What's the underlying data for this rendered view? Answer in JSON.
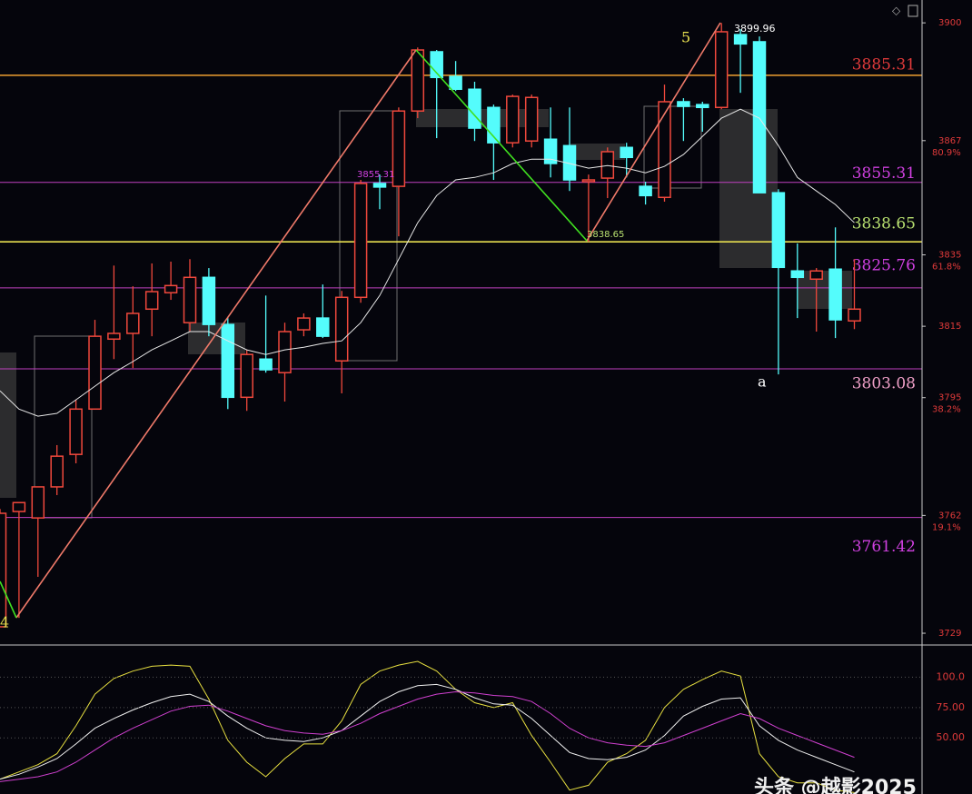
{
  "chart_data": [
    {
      "type": "candlestick",
      "open": [
        3730.8,
        3763.1,
        3761.3,
        3770.0,
        3779.1,
        3791.8,
        3811.4,
        3813.0,
        3819.8,
        3824.4,
        3816.0,
        3828.7,
        3815.5,
        3795.1,
        3805.8,
        3802.0,
        3814.0,
        3817.3,
        3805.3,
        3823.1,
        3855.0,
        3854.2,
        3875.3,
        3891.9,
        3885.0,
        3881.4,
        3876.3,
        3866.4,
        3866.9,
        3867.4,
        3865.6,
        3855.5,
        3856.5,
        3865.1,
        3854.2,
        3851.1,
        3877.9,
        3877.1,
        3876.3,
        3896.7,
        3894.7,
        3852.4,
        3830.5,
        3828.2,
        3831.0,
        3816.5
      ],
      "high": [
        3763.8,
        3765.6,
        3770.0,
        3781.7,
        3794.4,
        3816.8,
        3832.0,
        3826.2,
        3832.6,
        3833.1,
        3833.8,
        3831.3,
        3817.3,
        3808.4,
        3823.6,
        3816.0,
        3818.6,
        3826.7,
        3824.9,
        3856.0,
        3857.5,
        3876.3,
        3893.1,
        3892.4,
        3889.3,
        3883.5,
        3877.1,
        3879.9,
        3879.9,
        3876.3,
        3876.3,
        3857.5,
        3865.1,
        3866.4,
        3855.5,
        3882.7,
        3878.9,
        3877.9,
        3899.96,
        3898.2,
        3896.2,
        3853.4,
        3838.2,
        3831.3,
        3842.7,
        3833.8
      ],
      "low": [
        3730.8,
        3733.3,
        3744.8,
        3767.7,
        3776.6,
        3791.8,
        3805.8,
        3803.3,
        3812.2,
        3822.4,
        3813.5,
        3812.2,
        3791.8,
        3791.3,
        3802.0,
        3793.9,
        3812.2,
        3811.7,
        3796.2,
        3821.6,
        3847.8,
        3840.2,
        3873.3,
        3867.7,
        3880.9,
        3866.9,
        3856.0,
        3865.1,
        3865.1,
        3856.7,
        3852.9,
        3838.65,
        3850.9,
        3856.7,
        3849.1,
        3849.9,
        3866.9,
        3869.5,
        3875.8,
        3880.4,
        3852.4,
        3801.5,
        3817.3,
        3813.5,
        3811.7,
        3814.2
      ],
      "close": [
        3762.6,
        3765.6,
        3770.0,
        3778.6,
        3791.8,
        3812.2,
        3813.0,
        3818.6,
        3824.7,
        3826.4,
        3828.7,
        3815.5,
        3795.1,
        3807.1,
        3802.8,
        3813.5,
        3817.3,
        3812.2,
        3823.1,
        3855.0,
        3854.0,
        3875.3,
        3892.4,
        3884.7,
        3881.4,
        3870.5,
        3866.4,
        3879.4,
        3879.1,
        3860.6,
        3856.0,
        3856.0,
        3863.9,
        3862.3,
        3851.6,
        3877.9,
        3876.6,
        3876.3,
        3897.5,
        3894.1,
        3852.4,
        3831.5,
        3828.7,
        3830.5,
        3816.8,
        3819.8
      ],
      "up_color": "#f0483c",
      "down_color": "#54fcfc",
      "ma": {
        "color": "#e8e8e8",
        "values": [
          3796.9,
          3791.8,
          3789.8,
          3790.6,
          3794.4,
          3798.2,
          3802.0,
          3805.1,
          3808.4,
          3810.9,
          3813.5,
          3813.5,
          3810.9,
          3808.4,
          3807.1,
          3808.4,
          3809.1,
          3810.2,
          3810.9,
          3816.0,
          3823.6,
          3833.8,
          3844.0,
          3851.6,
          3856.0,
          3856.7,
          3858.0,
          3860.6,
          3861.8,
          3861.8,
          3860.6,
          3859.3,
          3860.0,
          3859.3,
          3858.0,
          3859.8,
          3863.1,
          3868.2,
          3873.3,
          3875.8,
          3873.3,
          3865.6,
          3856.7,
          3852.9,
          3849.1,
          3844.0
        ]
      },
      "ylim": [
        3725.7,
        3906.4
      ],
      "yticks": [
        3900,
        3867,
        3835,
        3815,
        3795,
        3762,
        3729
      ],
      "fib_ticks": [
        {
          "value": 3867,
          "label": "80.9%"
        },
        {
          "value": 3835,
          "label": "61.8%"
        },
        {
          "value": 3795,
          "label": "38.2%"
        },
        {
          "value": 3762,
          "label": "19.1%"
        }
      ],
      "tick_color": "#e03a3a",
      "levels": [
        {
          "value": 3885.31,
          "color": "#f0a030",
          "label_color": "#e03a3a"
        },
        {
          "value": 3855.31,
          "color": "#c040c0",
          "label_color": "#d040e0"
        },
        {
          "value": 3838.65,
          "color": "#e8e050",
          "label_color": "#b8e070"
        },
        {
          "value": 3825.76,
          "color": "#c040c0",
          "label_color": "#d040e0"
        },
        {
          "value": 3803.08,
          "color": "#c040c0",
          "label_color": "#f0a0c8"
        },
        {
          "value": 3761.42,
          "color": "#c040c0",
          "label_color": "#d040e0"
        }
      ],
      "annotations": [
        "5",
        "a",
        "4",
        "3899.96",
        "3855.31",
        "3838.65"
      ]
    },
    {
      "type": "line",
      "series": [
        {
          "color": "#e8e040",
          "values": [
            16,
            22,
            28,
            37,
            60,
            86,
            99,
            105,
            109,
            110,
            109,
            82,
            48,
            30,
            18,
            33,
            45,
            45,
            64,
            94,
            105,
            110,
            113,
            105,
            90,
            79,
            75,
            79,
            52,
            30,
            7,
            11,
            30,
            37,
            48,
            75,
            90,
            98,
            105,
            101,
            37,
            18,
            13,
            13,
            7,
            5
          ]
        },
        {
          "color": "#f0f0f0",
          "values": [
            16,
            20,
            26,
            33,
            45,
            58,
            66,
            73,
            79,
            84,
            86,
            80,
            68,
            58,
            50,
            48,
            47,
            50,
            56,
            68,
            80,
            88,
            93,
            94,
            90,
            83,
            78,
            77,
            66,
            52,
            38,
            33,
            32,
            34,
            40,
            52,
            68,
            76,
            82,
            83,
            60,
            48,
            40,
            34,
            28,
            22
          ]
        },
        {
          "color": "#d040d0",
          "values": [
            14,
            16,
            18,
            22,
            30,
            40,
            50,
            58,
            65,
            72,
            76,
            77,
            72,
            66,
            60,
            56,
            54,
            53,
            56,
            62,
            70,
            76,
            82,
            86,
            88,
            87,
            85,
            84,
            80,
            70,
            58,
            50,
            46,
            44,
            43,
            46,
            52,
            58,
            64,
            70,
            66,
            58,
            52,
            46,
            40,
            34
          ]
        }
      ],
      "ylim": [
        3.8,
        126.5
      ],
      "yticks": [
        {
          "value": 100,
          "label": "100.0"
        },
        {
          "value": 75,
          "label": "75.00"
        },
        {
          "value": 50,
          "label": "50.00"
        }
      ],
      "tick_color": "#e03a3a",
      "watermark": "头条 @越影2025"
    }
  ]
}
